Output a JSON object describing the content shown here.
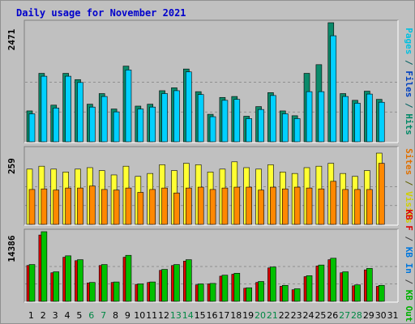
{
  "title": "Daily usage for November 2021",
  "colors": {
    "pages": "#00d0ff",
    "hits": "#0a8a6a",
    "visits": "#ffff33",
    "sites": "#ff8800",
    "kb_in": "#00c000",
    "kb_out": "#0077dd",
    "kb_f": "#dd0000",
    "weekend_label": "#008844",
    "weekday_label": "#000000",
    "grid": "#808080"
  },
  "chart_data": [
    {
      "type": "bar",
      "panel": "hits-files-pages",
      "axis_max_label": "2471",
      "ylim": [
        0,
        2471
      ],
      "right_labels": [
        {
          "text": "Pages",
          "color": "#00c0e0"
        },
        {
          "text": "/",
          "color": "#006060"
        },
        {
          "text": "Files",
          "color": "#0040c0"
        },
        {
          "text": "/",
          "color": "#006060"
        },
        {
          "text": "Hits",
          "color": "#008866"
        }
      ],
      "categories": [
        "1",
        "2",
        "3",
        "4",
        "5",
        "6",
        "7",
        "8",
        "9",
        "10",
        "11",
        "12",
        "13",
        "14",
        "15",
        "16",
        "17",
        "18",
        "19",
        "20",
        "21",
        "22",
        "23",
        "24",
        "25",
        "26",
        "27",
        "28",
        "29",
        "30",
        "31"
      ],
      "weekend_days": [
        "6",
        "7",
        "13",
        "14",
        "20",
        "21",
        "27",
        "28"
      ],
      "series": [
        {
          "key": "hits",
          "values": [
            640,
            1420,
            760,
            1420,
            1290,
            780,
            1000,
            680,
            1570,
            740,
            780,
            1060,
            1120,
            1510,
            1040,
            570,
            920,
            940,
            530,
            730,
            1020,
            640,
            540,
            1420,
            1600,
            2471,
            1000,
            860,
            1050,
            880,
            0
          ]
        },
        {
          "key": "pages",
          "values": [
            580,
            1360,
            700,
            1360,
            1230,
            720,
            940,
            620,
            1490,
            680,
            720,
            1000,
            1060,
            1450,
            980,
            520,
            860,
            880,
            480,
            670,
            960,
            580,
            480,
            1040,
            1040,
            2200,
            940,
            800,
            990,
            820,
            0
          ]
        }
      ]
    },
    {
      "type": "bar",
      "panel": "visits-sites",
      "axis_max_label": "259",
      "ylim": [
        0,
        259
      ],
      "right_labels": [
        {
          "text": "Sites",
          "color": "#e07000"
        },
        {
          "text": "/",
          "color": "#606000"
        },
        {
          "text": "Visits",
          "color": "#d0d000"
        }
      ],
      "categories": [
        "1",
        "2",
        "3",
        "4",
        "5",
        "6",
        "7",
        "8",
        "9",
        "10",
        "11",
        "12",
        "13",
        "14",
        "15",
        "16",
        "17",
        "18",
        "19",
        "20",
        "21",
        "22",
        "23",
        "24",
        "25",
        "26",
        "27",
        "28",
        "29",
        "30",
        "31"
      ],
      "series": [
        {
          "key": "visits",
          "values": [
            190,
            200,
            190,
            180,
            190,
            195,
            185,
            170,
            200,
            165,
            175,
            205,
            185,
            210,
            205,
            180,
            190,
            215,
            195,
            190,
            205,
            180,
            175,
            195,
            200,
            210,
            175,
            165,
            185,
            245,
            0
          ]
        },
        {
          "key": "sites",
          "values": [
            120,
            122,
            118,
            125,
            125,
            132,
            120,
            118,
            125,
            110,
            120,
            125,
            108,
            125,
            128,
            120,
            125,
            128,
            128,
            118,
            128,
            122,
            128,
            125,
            122,
            148,
            120,
            120,
            120,
            210,
            0
          ]
        }
      ]
    },
    {
      "type": "bar",
      "panel": "kb",
      "axis_max_label": "14386",
      "ylim": [
        0,
        14386
      ],
      "right_labels": [
        {
          "text": "KB F",
          "color": "#dd0000"
        },
        {
          "text": "/",
          "color": "#404040"
        },
        {
          "text": "KB In",
          "color": "#0077dd"
        },
        {
          "text": "/",
          "color": "#404040"
        },
        {
          "text": "KB Out",
          "color": "#00b000"
        }
      ],
      "categories": [
        "1",
        "2",
        "3",
        "4",
        "5",
        "6",
        "7",
        "8",
        "9",
        "10",
        "11",
        "12",
        "13",
        "14",
        "15",
        "16",
        "17",
        "18",
        "19",
        "20",
        "21",
        "22",
        "23",
        "24",
        "25",
        "26",
        "27",
        "28",
        "29",
        "30",
        "31"
      ],
      "series": [
        {
          "key": "kb_f",
          "values": [
            7400,
            13700,
            5900,
            9100,
            8400,
            3800,
            7400,
            3900,
            9100,
            3500,
            3900,
            6400,
            7400,
            8300,
            3400,
            3600,
            5200,
            5600,
            2700,
            3900,
            6900,
            3100,
            2400,
            5100,
            7300,
            8600,
            5900,
            3200,
            6500,
            3100,
            0
          ]
        },
        {
          "key": "kb_in",
          "values": [
            7600,
            14386,
            6100,
            9400,
            8600,
            3900,
            7600,
            4000,
            9500,
            3600,
            4000,
            6600,
            7600,
            8600,
            3600,
            3700,
            5400,
            5800,
            2800,
            4100,
            7100,
            3300,
            2600,
            5300,
            7500,
            8900,
            6100,
            3400,
            6800,
            3300,
            0
          ]
        }
      ]
    }
  ]
}
